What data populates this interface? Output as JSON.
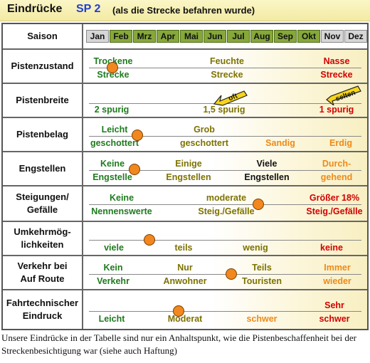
{
  "title": {
    "main": "Eindrücke",
    "code": "SP 2",
    "subtitle": "(als die Strecke befahren wurde)"
  },
  "season": {
    "label": "Saison",
    "months": [
      {
        "name": "Jan",
        "active": false
      },
      {
        "name": "Feb",
        "active": true
      },
      {
        "name": "Mrz",
        "active": true
      },
      {
        "name": "Apr",
        "active": true
      },
      {
        "name": "Mai",
        "active": true
      },
      {
        "name": "Jun",
        "active": true
      },
      {
        "name": "Jul",
        "active": true
      },
      {
        "name": "Aug",
        "active": true
      },
      {
        "name": "Sep",
        "active": true
      },
      {
        "name": "Okt",
        "active": true
      },
      {
        "name": "Nov",
        "active": false
      },
      {
        "name": "Dez",
        "active": false
      }
    ]
  },
  "rows": {
    "pistenzustand": {
      "label": "Pistenzustand",
      "opt1": {
        "top": "Trockene",
        "bottom": "Strecke"
      },
      "opt2": {
        "top": "Feuchte",
        "bottom": "Strecke"
      },
      "opt3": {
        "top": "Nasse",
        "bottom": "Strecke"
      }
    },
    "pistenbreite": {
      "label": "Pistenbreite",
      "opt1": "2 spurig",
      "opt2": "1,5 spurig",
      "opt3": "1 spurig",
      "arrow1": "oft",
      "arrow2": "selten"
    },
    "pistenbelag": {
      "label": "Pistenbelag",
      "opt1": {
        "top": "Leicht",
        "bottom": "geschottert"
      },
      "opt2": {
        "top": "Grob",
        "bottom": "geschottert"
      },
      "opt3": "Sandig",
      "opt4": "Erdig"
    },
    "engstellen": {
      "label": "Engstellen",
      "opt1": {
        "top": "Keine",
        "bottom": "Engstelle"
      },
      "opt2": {
        "top": "Einige",
        "bottom": "Engstellen"
      },
      "opt3": {
        "top": "Viele",
        "bottom": "Engstellen"
      },
      "opt4": {
        "top": "Durch-",
        "bottom": "gehend"
      }
    },
    "steigungen": {
      "label": "Steigungen/\nGefälle",
      "opt1": {
        "top": "Keine",
        "bottom": "Nennenswerte"
      },
      "opt2": {
        "top": "moderate",
        "bottom": "Steig./Gefälle"
      },
      "opt3": {
        "top": "Größer 18%",
        "bottom": "Steig./Gefälle"
      }
    },
    "umkehr": {
      "label": "Umkehrmög-\nlichkeiten",
      "opt1": "viele",
      "opt2": "teils",
      "opt3": "wenig",
      "opt4": "keine"
    },
    "verkehr": {
      "label": "Verkehr bei\nAuf Route",
      "opt1": {
        "top": "Kein",
        "bottom": "Verkehr"
      },
      "opt2": {
        "top": "Nur",
        "bottom": "Anwohner"
      },
      "opt3": {
        "top": "Teils",
        "bottom": "Touristen"
      },
      "opt4": {
        "top": "Immer",
        "bottom": "wieder"
      }
    },
    "eindruck": {
      "label": "Fahrtechnischer\nEindruck",
      "opt1": "Leicht",
      "opt2": "Moderat",
      "opt3": "schwer",
      "opt4": {
        "top": "Sehr",
        "bottom": "schwer"
      }
    }
  },
  "footer": "Unsere Eindrücke in der Tabelle sind nur ein Anhaltspunkt, wie die Pistenbeschaffenheit bei der Streckenbesichtigung war (siehe auch Haftung)",
  "colors": {
    "good": "#1f7a1f",
    "medium": "#7d7200",
    "warn": "#ee8a1a",
    "bad": "#d20000",
    "marker": "#f1871e",
    "month_active": "#86a83a",
    "month_inactive": "#d6d6d6"
  }
}
